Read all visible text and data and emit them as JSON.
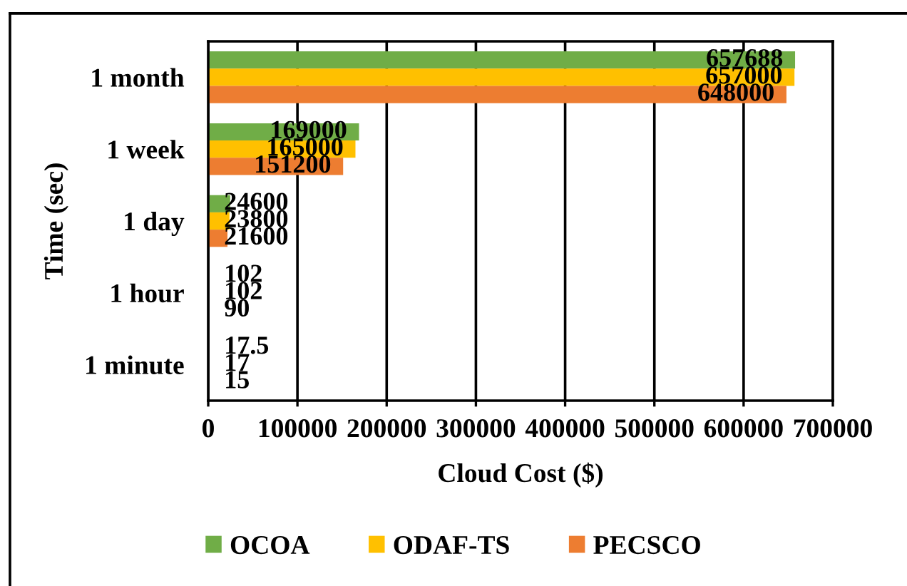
{
  "chart_data": {
    "type": "bar",
    "orientation": "horizontal",
    "xlabel": "Cloud Cost ($)",
    "ylabel": "Time (sec)",
    "categories": [
      "1 month",
      "1 week",
      "1 day",
      "1 hour",
      "1 minute"
    ],
    "series": [
      {
        "name": "OCOA",
        "color": "#70ad47",
        "values": [
          657688,
          169000,
          24600,
          102,
          17.5
        ]
      },
      {
        "name": "ODAF-TS",
        "color": "#ffc000",
        "values": [
          657000,
          165000,
          23800,
          102,
          17
        ]
      },
      {
        "name": "PECSCO",
        "color": "#ed7d31",
        "values": [
          648000,
          151200,
          21600,
          90,
          15
        ]
      }
    ],
    "xlim": [
      0,
      700000
    ],
    "xticks": [
      0,
      100000,
      200000,
      300000,
      400000,
      500000,
      600000,
      700000
    ],
    "grid": "x",
    "legend": "bottom",
    "data_labels": true
  }
}
